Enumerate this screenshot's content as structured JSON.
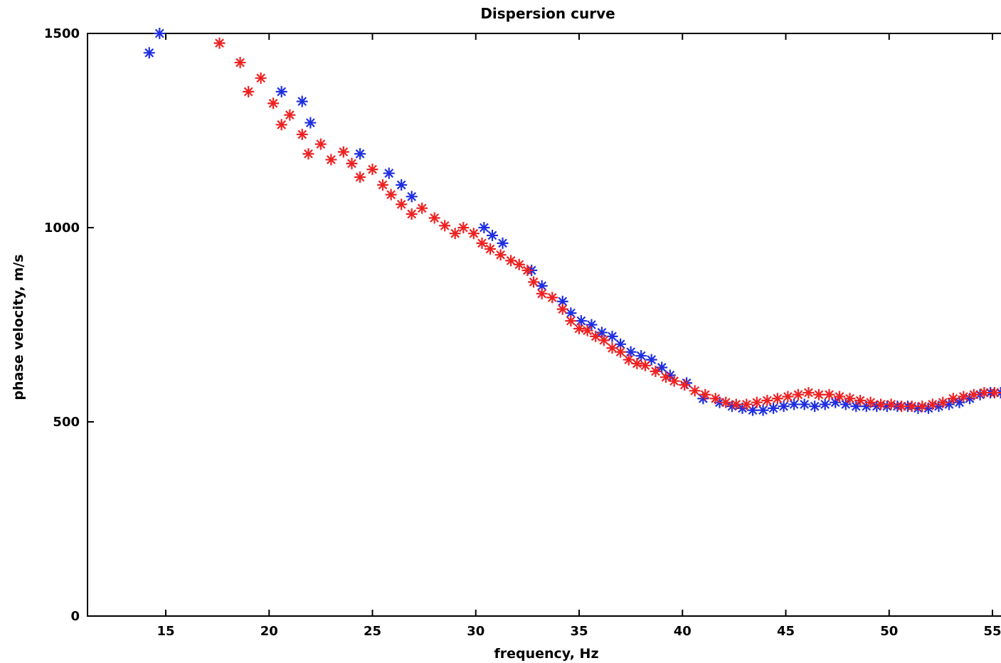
{
  "chart_data": {
    "type": "scatter",
    "title": "Dispersion curve",
    "xlabel": "frequency, Hz",
    "ylabel": "phase velocity, m/s",
    "xlim": [
      11.2,
      56
    ],
    "ylim": [
      0,
      1500
    ],
    "xticks": [
      15,
      20,
      25,
      30,
      35,
      40,
      45,
      50,
      55
    ],
    "yticks": [
      0,
      500,
      1000,
      1500
    ],
    "grid": false,
    "marker": "*",
    "series": [
      {
        "color": "#1f2fe0",
        "x": [
          14.2,
          14.7,
          20.6,
          21.6,
          22.0,
          24.4,
          25.8,
          26.4,
          26.9,
          30.4,
          30.8,
          31.3,
          32.7,
          33.2,
          34.2,
          34.6,
          35.1,
          35.6,
          36.1,
          36.6,
          37.0,
          37.5,
          38.0,
          38.5,
          39.0,
          39.4,
          40.2,
          41.0,
          41.8,
          42.4,
          42.9,
          43.4,
          43.9,
          44.4,
          44.9,
          45.4,
          45.9,
          46.4,
          46.9,
          47.4,
          47.9,
          48.4,
          48.9,
          49.4,
          49.9,
          50.4,
          50.9,
          51.4,
          51.9,
          52.4,
          52.9,
          53.4,
          53.9,
          54.4,
          54.9,
          55.4,
          55.9
        ],
        "y": [
          1450,
          1500,
          1350,
          1325,
          1270,
          1190,
          1140,
          1110,
          1080,
          1000,
          980,
          960,
          890,
          850,
          810,
          780,
          760,
          750,
          730,
          720,
          700,
          680,
          670,
          660,
          640,
          620,
          600,
          560,
          550,
          540,
          535,
          530,
          530,
          535,
          540,
          545,
          545,
          540,
          545,
          550,
          545,
          540,
          540,
          540,
          540,
          540,
          540,
          535,
          535,
          540,
          545,
          550,
          560,
          570,
          575,
          575,
          570
        ]
      },
      {
        "color": "#ee2222",
        "x": [
          17.6,
          18.6,
          19.0,
          19.6,
          20.2,
          20.6,
          21.0,
          21.6,
          21.9,
          22.5,
          23.0,
          23.6,
          24.0,
          24.4,
          25.0,
          25.5,
          25.9,
          26.4,
          26.9,
          27.4,
          28.0,
          28.5,
          29.0,
          29.4,
          29.9,
          30.3,
          30.7,
          31.2,
          31.7,
          32.1,
          32.5,
          32.8,
          33.2,
          33.7,
          34.2,
          34.6,
          35.0,
          35.4,
          35.8,
          36.2,
          36.6,
          37.0,
          37.4,
          37.8,
          38.2,
          38.7,
          39.2,
          39.6,
          40.1,
          40.6,
          41.1,
          41.6,
          42.1,
          42.6,
          43.1,
          43.6,
          44.1,
          44.6,
          45.1,
          45.6,
          46.1,
          46.6,
          47.1,
          47.6,
          48.1,
          48.6,
          49.1,
          49.6,
          50.1,
          50.6,
          51.1,
          51.6,
          52.1,
          52.6,
          53.1,
          53.6,
          54.1,
          54.6,
          55.1,
          55.6,
          55.95
        ],
        "y": [
          1475,
          1425,
          1350,
          1385,
          1320,
          1265,
          1290,
          1240,
          1190,
          1215,
          1175,
          1195,
          1165,
          1130,
          1150,
          1110,
          1085,
          1060,
          1035,
          1050,
          1025,
          1005,
          985,
          1000,
          985,
          960,
          945,
          930,
          915,
          905,
          890,
          860,
          830,
          820,
          790,
          760,
          740,
          735,
          720,
          710,
          690,
          680,
          660,
          650,
          645,
          630,
          615,
          605,
          595,
          580,
          570,
          560,
          550,
          545,
          545,
          550,
          555,
          560,
          565,
          570,
          575,
          570,
          570,
          565,
          560,
          555,
          550,
          545,
          545,
          540,
          540,
          540,
          545,
          550,
          560,
          565,
          570,
          575,
          575,
          575,
          575
        ]
      }
    ]
  }
}
